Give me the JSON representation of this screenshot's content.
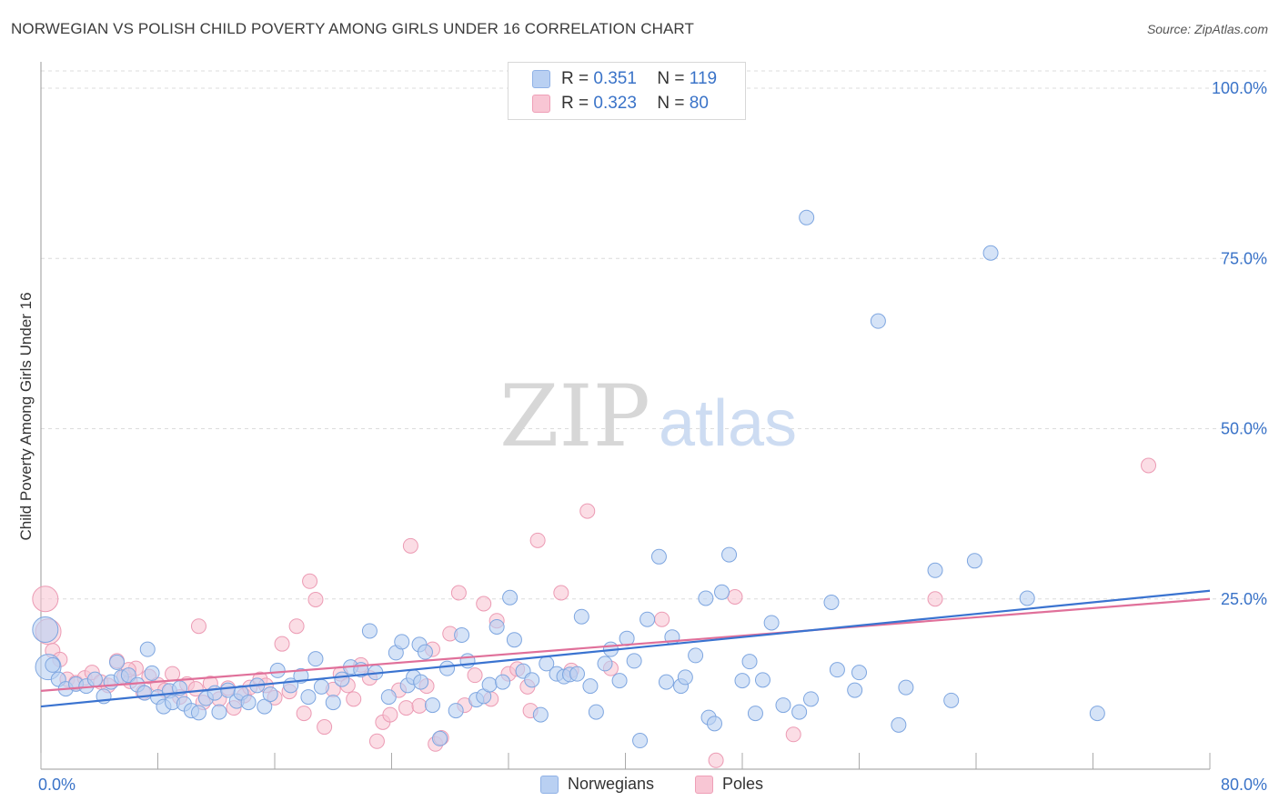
{
  "title": "NORWEGIAN VS POLISH CHILD POVERTY AMONG GIRLS UNDER 16 CORRELATION CHART",
  "source": "Source: ZipAtlas.com",
  "watermark": {
    "zip": "ZIP",
    "atlas": "atlas"
  },
  "legend": {
    "rows": [
      {
        "r_label": "R =",
        "r_value": "0.351",
        "n_label": "N =",
        "n_value": "119"
      },
      {
        "r_label": "R =",
        "r_value": "0.323",
        "n_label": "N =",
        "n_value": "80"
      }
    ]
  },
  "bottom_legend": {
    "series1": "Norwegians",
    "series2": "Poles"
  },
  "colors": {
    "blue_fill": "#b9d0f2",
    "blue_stroke": "#7ea6e0",
    "blue_line": "#3a73d0",
    "pink_fill": "#f8c6d4",
    "pink_stroke": "#ec9bb4",
    "pink_line": "#e0709a",
    "axis_label": "#3a73c8",
    "grid": "#dcdcdc"
  },
  "chart_data": {
    "type": "scatter",
    "title": "NORWEGIAN VS POLISH CHILD POVERTY AMONG GIRLS UNDER 16 CORRELATION CHART",
    "xlabel": "",
    "ylabel": "Child Poverty Among Girls Under 16",
    "xlim": [
      0,
      80
    ],
    "ylim": [
      0,
      100
    ],
    "x_tick_labels": [
      "0.0%",
      "80.0%"
    ],
    "y_ticks": [
      25,
      50,
      75,
      100
    ],
    "y_tick_labels": [
      "25.0%",
      "50.0%",
      "75.0%",
      "100.0%"
    ],
    "grid": "horizontal dashed",
    "legend_position": "top-center",
    "series": [
      {
        "name": "Norwegians",
        "R": 0.351,
        "N": 119,
        "trend": {
          "x": [
            0,
            80
          ],
          "y": [
            9.2,
            26.2
          ]
        },
        "points": [
          [
            0.3,
            20.5
          ],
          [
            0.5,
            15.0
          ],
          [
            1.2,
            13.2
          ],
          [
            1.7,
            11.8
          ],
          [
            2.4,
            12.5
          ],
          [
            3.1,
            12.2
          ],
          [
            3.7,
            13.2
          ],
          [
            4.3,
            10.7
          ],
          [
            4.8,
            12.8
          ],
          [
            5.2,
            15.7
          ],
          [
            5.5,
            13.5
          ],
          [
            6.0,
            13.8
          ],
          [
            6.6,
            12.4
          ],
          [
            7.1,
            11.2
          ],
          [
            7.3,
            17.6
          ],
          [
            7.6,
            14.1
          ],
          [
            8.0,
            10.6
          ],
          [
            8.4,
            9.2
          ],
          [
            8.8,
            11.5
          ],
          [
            9.0,
            9.8
          ],
          [
            9.5,
            11.9
          ],
          [
            9.8,
            9.6
          ],
          [
            10.3,
            8.6
          ],
          [
            10.8,
            8.3
          ],
          [
            11.3,
            10.4
          ],
          [
            11.9,
            11.2
          ],
          [
            12.2,
            8.4
          ],
          [
            12.8,
            11.6
          ],
          [
            13.4,
            10.0
          ],
          [
            13.7,
            11.2
          ],
          [
            14.2,
            9.8
          ],
          [
            14.8,
            12.3
          ],
          [
            15.3,
            9.2
          ],
          [
            15.7,
            11.0
          ],
          [
            16.2,
            14.5
          ],
          [
            17.1,
            12.3
          ],
          [
            17.8,
            13.7
          ],
          [
            18.3,
            10.6
          ],
          [
            18.8,
            16.2
          ],
          [
            19.2,
            12.1
          ],
          [
            20.0,
            9.8
          ],
          [
            20.6,
            13.2
          ],
          [
            21.2,
            15.0
          ],
          [
            21.9,
            14.6
          ],
          [
            22.5,
            20.3
          ],
          [
            22.9,
            14.2
          ],
          [
            23.8,
            10.6
          ],
          [
            24.3,
            17.1
          ],
          [
            24.7,
            18.7
          ],
          [
            25.1,
            12.3
          ],
          [
            25.5,
            13.5
          ],
          [
            25.9,
            18.3
          ],
          [
            26.3,
            17.2
          ],
          [
            26.8,
            9.4
          ],
          [
            27.3,
            4.5
          ],
          [
            27.8,
            14.8
          ],
          [
            28.4,
            8.6
          ],
          [
            28.8,
            19.7
          ],
          [
            29.2,
            15.9
          ],
          [
            29.8,
            10.2
          ],
          [
            30.3,
            10.7
          ],
          [
            30.7,
            12.4
          ],
          [
            31.2,
            20.9
          ],
          [
            31.6,
            12.8
          ],
          [
            32.1,
            25.2
          ],
          [
            32.4,
            19.0
          ],
          [
            33.0,
            14.4
          ],
          [
            33.6,
            13.1
          ],
          [
            34.2,
            8.0
          ],
          [
            34.6,
            15.5
          ],
          [
            35.3,
            14.0
          ],
          [
            35.8,
            13.6
          ],
          [
            36.2,
            13.9
          ],
          [
            37.0,
            22.4
          ],
          [
            37.6,
            12.2
          ],
          [
            38.0,
            8.4
          ],
          [
            38.6,
            15.5
          ],
          [
            39.0,
            17.6
          ],
          [
            39.6,
            13.0
          ],
          [
            40.1,
            19.2
          ],
          [
            40.6,
            15.9
          ],
          [
            41.0,
            4.2
          ],
          [
            41.5,
            22.0
          ],
          [
            42.3,
            31.2
          ],
          [
            42.8,
            12.8
          ],
          [
            43.2,
            19.4
          ],
          [
            43.8,
            12.2
          ],
          [
            44.1,
            13.5
          ],
          [
            44.8,
            16.7
          ],
          [
            45.5,
            25.1
          ],
          [
            45.7,
            7.6
          ],
          [
            46.1,
            6.7
          ],
          [
            46.6,
            26.0
          ],
          [
            47.1,
            31.5
          ],
          [
            48.0,
            13.0
          ],
          [
            48.5,
            15.8
          ],
          [
            48.9,
            8.2
          ],
          [
            49.4,
            13.1
          ],
          [
            50.0,
            21.5
          ],
          [
            50.8,
            9.4
          ],
          [
            52.4,
            81.0
          ],
          [
            51.9,
            8.4
          ],
          [
            52.7,
            10.3
          ],
          [
            54.1,
            24.5
          ],
          [
            54.5,
            14.6
          ],
          [
            55.7,
            11.6
          ],
          [
            56.0,
            14.2
          ],
          [
            57.3,
            65.8
          ],
          [
            58.7,
            6.5
          ],
          [
            61.2,
            29.2
          ],
          [
            62.3,
            10.1
          ],
          [
            63.9,
            30.6
          ],
          [
            65.0,
            75.8
          ],
          [
            67.5,
            25.1
          ],
          [
            72.3,
            8.2
          ],
          [
            59.2,
            12.0
          ],
          [
            36.7,
            14.0
          ],
          [
            26.0,
            12.8
          ],
          [
            0.8,
            15.3
          ]
        ]
      },
      {
        "name": "Poles",
        "R": 0.323,
        "N": 80,
        "trend": {
          "x": [
            0,
            80
          ],
          "y": [
            11.5,
            25.0
          ]
        },
        "points": [
          [
            0.3,
            25.0
          ],
          [
            0.5,
            20.2
          ],
          [
            0.8,
            17.4
          ],
          [
            1.3,
            16.1
          ],
          [
            1.8,
            13.2
          ],
          [
            2.4,
            12.7
          ],
          [
            3.0,
            13.4
          ],
          [
            3.5,
            14.2
          ],
          [
            4.1,
            12.8
          ],
          [
            4.6,
            12.3
          ],
          [
            5.2,
            15.9
          ],
          [
            5.7,
            13.6
          ],
          [
            6.1,
            12.9
          ],
          [
            6.5,
            14.8
          ],
          [
            7.0,
            11.3
          ],
          [
            7.4,
            13.6
          ],
          [
            8.0,
            12.4
          ],
          [
            8.5,
            11.6
          ],
          [
            9.0,
            14.0
          ],
          [
            9.5,
            10.6
          ],
          [
            10.0,
            12.5
          ],
          [
            10.6,
            11.8
          ],
          [
            11.1,
            9.8
          ],
          [
            11.6,
            12.6
          ],
          [
            12.2,
            10.3
          ],
          [
            12.8,
            11.9
          ],
          [
            13.2,
            9.0
          ],
          [
            13.9,
            10.8
          ],
          [
            14.3,
            12.0
          ],
          [
            15.0,
            13.2
          ],
          [
            15.4,
            12.3
          ],
          [
            16.0,
            10.5
          ],
          [
            16.5,
            18.4
          ],
          [
            17.0,
            11.4
          ],
          [
            17.5,
            21.0
          ],
          [
            18.0,
            8.2
          ],
          [
            18.4,
            27.6
          ],
          [
            18.8,
            24.9
          ],
          [
            19.4,
            6.2
          ],
          [
            20.0,
            11.7
          ],
          [
            20.5,
            14.0
          ],
          [
            21.0,
            12.3
          ],
          [
            21.4,
            10.3
          ],
          [
            21.9,
            15.3
          ],
          [
            22.5,
            13.4
          ],
          [
            23.0,
            4.1
          ],
          [
            23.4,
            6.9
          ],
          [
            23.9,
            8.0
          ],
          [
            24.5,
            11.6
          ],
          [
            25.0,
            9.0
          ],
          [
            25.3,
            32.8
          ],
          [
            25.9,
            9.3
          ],
          [
            26.4,
            12.2
          ],
          [
            27.0,
            3.7
          ],
          [
            27.4,
            4.6
          ],
          [
            28.0,
            19.9
          ],
          [
            28.6,
            25.9
          ],
          [
            29.0,
            9.4
          ],
          [
            29.7,
            13.8
          ],
          [
            30.3,
            24.3
          ],
          [
            30.8,
            10.3
          ],
          [
            31.2,
            21.8
          ],
          [
            32.0,
            14.0
          ],
          [
            32.6,
            14.7
          ],
          [
            33.3,
            12.1
          ],
          [
            34.0,
            33.6
          ],
          [
            35.6,
            25.9
          ],
          [
            36.3,
            14.5
          ],
          [
            37.4,
            37.9
          ],
          [
            39.0,
            14.8
          ],
          [
            42.5,
            22.0
          ],
          [
            47.5,
            25.3
          ],
          [
            51.5,
            5.1
          ],
          [
            61.2,
            25.0
          ],
          [
            75.8,
            44.6
          ],
          [
            46.2,
            1.3
          ],
          [
            26.8,
            17.6
          ],
          [
            33.5,
            8.6
          ],
          [
            10.8,
            21.0
          ],
          [
            6.0,
            14.6
          ]
        ]
      }
    ]
  }
}
